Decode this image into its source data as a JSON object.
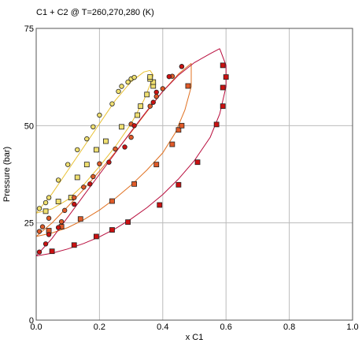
{
  "chart_data": {
    "type": "scatter",
    "title": "C1 + C2 @ T=260,270,280 (K)",
    "xlabel": "x C1",
    "ylabel": "Pressure (bar)",
    "xlim": [
      0,
      1
    ],
    "ylim": [
      0,
      75
    ],
    "grid": true,
    "x_ticks": [
      "0.0",
      "0.2",
      "0.4",
      "0.6",
      "0.8",
      "1.0"
    ],
    "y_ticks": [
      "0",
      "25",
      "50",
      "75"
    ],
    "colors": {
      "t260_points": "#f0e070",
      "t260_curve": "#e8c030",
      "t270_points": "#e05a28",
      "t270_curve": "#e07020",
      "t280_points": "#cc1111",
      "t280_curve": "#b80c3c",
      "marker_outline": "#222222",
      "grid": "#bbbbbb"
    },
    "series": [
      {
        "temperature_k": 260,
        "bubble_points": [
          [
            0.01,
            28.7
          ],
          [
            0.03,
            30.2
          ],
          [
            0.04,
            31.5
          ],
          [
            0.07,
            36.0
          ],
          [
            0.1,
            40.0
          ],
          [
            0.13,
            43.8
          ],
          [
            0.16,
            46.6
          ],
          [
            0.18,
            49.7
          ],
          [
            0.2,
            52.7
          ],
          [
            0.24,
            55.6
          ],
          [
            0.26,
            58.8
          ],
          [
            0.27,
            60.1
          ],
          [
            0.29,
            61.2
          ],
          [
            0.3,
            62.0
          ],
          [
            0.31,
            62.4
          ]
        ],
        "dew_points": [
          [
            0.03,
            28.0
          ],
          [
            0.07,
            30.5
          ],
          [
            0.11,
            31.5
          ],
          [
            0.13,
            36.7
          ],
          [
            0.16,
            40.0
          ],
          [
            0.19,
            43.8
          ],
          [
            0.22,
            46.0
          ],
          [
            0.27,
            49.7
          ],
          [
            0.32,
            52.7
          ],
          [
            0.33,
            55.0
          ],
          [
            0.35,
            58.0
          ],
          [
            0.37,
            60.2
          ],
          [
            0.37,
            61.2
          ],
          [
            0.36,
            62.0
          ],
          [
            0.36,
            62.5
          ]
        ],
        "bubble_curve": [
          [
            0.0,
            27.5
          ],
          [
            0.05,
            32.5
          ],
          [
            0.1,
            38.5
          ],
          [
            0.15,
            44.5
          ],
          [
            0.2,
            50.5
          ],
          [
            0.25,
            56.5
          ],
          [
            0.3,
            61.3
          ],
          [
            0.34,
            63.8
          ],
          [
            0.36,
            64.2
          ]
        ],
        "dew_curve": [
          [
            0.0,
            27.5
          ],
          [
            0.05,
            28.6
          ],
          [
            0.1,
            31.0
          ],
          [
            0.15,
            34.8
          ],
          [
            0.2,
            39.5
          ],
          [
            0.25,
            44.6
          ],
          [
            0.3,
            50.5
          ],
          [
            0.34,
            56.5
          ],
          [
            0.36,
            60.5
          ],
          [
            0.37,
            63.0
          ],
          [
            0.36,
            64.2
          ]
        ]
      },
      {
        "temperature_k": 270,
        "bubble_points": [
          [
            0.01,
            22.8
          ],
          [
            0.02,
            24.0
          ],
          [
            0.04,
            26.2
          ],
          [
            0.08,
            25.3
          ],
          [
            0.09,
            28.2
          ],
          [
            0.12,
            31.5
          ],
          [
            0.15,
            34.2
          ],
          [
            0.18,
            36.9
          ],
          [
            0.2,
            40.2
          ],
          [
            0.25,
            44.0
          ],
          [
            0.3,
            47.0
          ],
          [
            0.3,
            50.4
          ],
          [
            0.36,
            55.0
          ],
          [
            0.38,
            57.5
          ],
          [
            0.4,
            59.5
          ],
          [
            0.43,
            62.7
          ],
          [
            0.46,
            65.2
          ]
        ],
        "dew_points": [
          [
            0.04,
            23.0
          ],
          [
            0.08,
            24.0
          ],
          [
            0.14,
            26.0
          ],
          [
            0.24,
            30.6
          ],
          [
            0.31,
            35.0
          ],
          [
            0.38,
            40.0
          ],
          [
            0.43,
            45.2
          ],
          [
            0.45,
            48.9
          ],
          [
            0.46,
            50.0
          ],
          [
            0.48,
            60.2
          ]
        ],
        "bubble_curve": [
          [
            0.0,
            21.5
          ],
          [
            0.05,
            25.0
          ],
          [
            0.1,
            29.2
          ],
          [
            0.15,
            33.6
          ],
          [
            0.2,
            38.3
          ],
          [
            0.25,
            43.2
          ],
          [
            0.3,
            48.3
          ],
          [
            0.35,
            53.6
          ],
          [
            0.4,
            58.8
          ],
          [
            0.45,
            63.3
          ],
          [
            0.49,
            66.0
          ]
        ],
        "dew_curve": [
          [
            0.0,
            21.5
          ],
          [
            0.05,
            22.4
          ],
          [
            0.1,
            23.8
          ],
          [
            0.15,
            25.8
          ],
          [
            0.2,
            28.3
          ],
          [
            0.25,
            31.3
          ],
          [
            0.3,
            34.7
          ],
          [
            0.35,
            38.6
          ],
          [
            0.4,
            43.0
          ],
          [
            0.44,
            48.2
          ],
          [
            0.47,
            54.0
          ],
          [
            0.49,
            60.0
          ],
          [
            0.49,
            66.0
          ]
        ]
      },
      {
        "temperature_k": 280,
        "bubble_points": [
          [
            0.01,
            17.5
          ],
          [
            0.03,
            19.6
          ],
          [
            0.04,
            22.0
          ],
          [
            0.07,
            23.8
          ],
          [
            0.12,
            29.8
          ],
          [
            0.17,
            35.0
          ],
          [
            0.23,
            40.6
          ],
          [
            0.28,
            44.5
          ],
          [
            0.31,
            50.0
          ],
          [
            0.37,
            56.0
          ],
          [
            0.38,
            58.6
          ],
          [
            0.42,
            62.6
          ],
          [
            0.46,
            65.2
          ]
        ],
        "dew_points": [
          [
            0.05,
            17.7
          ],
          [
            0.12,
            19.3
          ],
          [
            0.19,
            21.5
          ],
          [
            0.24,
            23.2
          ],
          [
            0.29,
            25.2
          ],
          [
            0.39,
            29.6
          ],
          [
            0.45,
            34.8
          ],
          [
            0.51,
            40.6
          ],
          [
            0.57,
            50.3
          ],
          [
            0.59,
            55.0
          ],
          [
            0.59,
            59.8
          ],
          [
            0.6,
            62.5
          ],
          [
            0.59,
            65.5
          ]
        ],
        "bubble_curve": [
          [
            0.0,
            16.5
          ],
          [
            0.05,
            21.0
          ],
          [
            0.1,
            26.5
          ],
          [
            0.15,
            32.0
          ],
          [
            0.2,
            37.5
          ],
          [
            0.25,
            43.0
          ],
          [
            0.3,
            48.5
          ],
          [
            0.35,
            53.8
          ],
          [
            0.4,
            58.8
          ],
          [
            0.45,
            63.0
          ],
          [
            0.5,
            66.2
          ],
          [
            0.55,
            68.5
          ],
          [
            0.58,
            69.8
          ]
        ],
        "dew_curve": [
          [
            0.0,
            16.5
          ],
          [
            0.05,
            17.2
          ],
          [
            0.1,
            18.3
          ],
          [
            0.15,
            19.7
          ],
          [
            0.2,
            21.4
          ],
          [
            0.25,
            23.5
          ],
          [
            0.3,
            26.0
          ],
          [
            0.35,
            28.9
          ],
          [
            0.4,
            32.3
          ],
          [
            0.45,
            36.3
          ],
          [
            0.5,
            41.0
          ],
          [
            0.55,
            47.0
          ],
          [
            0.58,
            53.0
          ],
          [
            0.6,
            60.0
          ],
          [
            0.6,
            65.5
          ],
          [
            0.58,
            69.8
          ]
        ]
      }
    ]
  }
}
